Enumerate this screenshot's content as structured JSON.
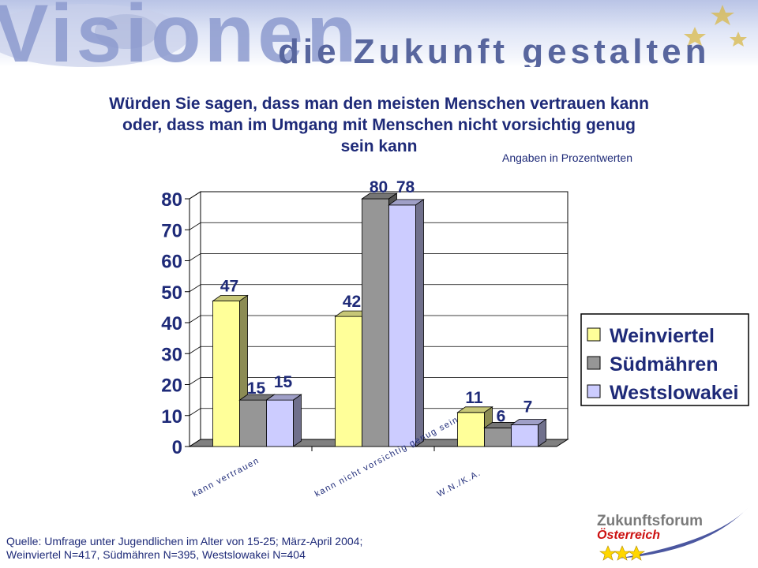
{
  "banner": {
    "word_big": "Visionen",
    "word_small": "die Zukunft gestalten"
  },
  "title": {
    "line1": "Würden Sie sagen, dass man den meisten Menschen vertrauen kann",
    "line2": "oder, dass man im Umgang mit Menschen nicht vorsichtig genug",
    "line3": "sein kann"
  },
  "subtitle": "Angaben in  Prozentwerten",
  "chart_data": {
    "type": "bar",
    "categories": [
      "kann vertrauen",
      "kann nicht vorsichtig genug sein",
      "W.N./K.A."
    ],
    "series": [
      {
        "name": "Weinviertel",
        "values": [
          47,
          42,
          11
        ],
        "color": "#ffff99"
      },
      {
        "name": "Südmähren",
        "values": [
          15,
          80,
          6
        ],
        "color": "#969696"
      },
      {
        "name": "Westslowakei",
        "values": [
          15,
          78,
          7
        ],
        "color": "#ccccff"
      }
    ],
    "ylim": [
      0,
      80
    ],
    "yticks": [
      "0",
      "10",
      "20",
      "30",
      "40",
      "50",
      "60",
      "70",
      "80"
    ],
    "grid": true,
    "legend_position": "right",
    "data_labels": true
  },
  "source": {
    "line1": "Quelle: Umfrage unter Jugendlichen im Alter von 15-25; März-April 2004;",
    "line2": "Weinviertel N=417, Südmähren N=395, Westslowakei N=404"
  },
  "logo": {
    "line1": "Zukunftsforum",
    "line2": "Österreich"
  }
}
